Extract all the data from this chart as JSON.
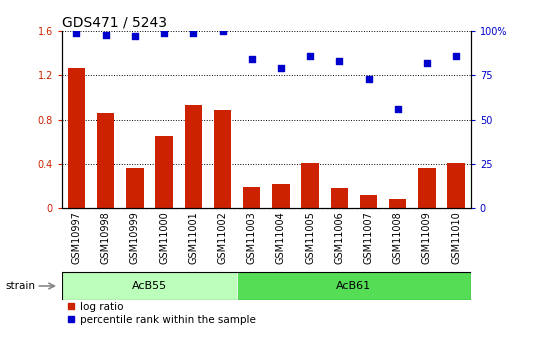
{
  "title": "GDS471 / 5243",
  "categories": [
    "GSM10997",
    "GSM10998",
    "GSM10999",
    "GSM11000",
    "GSM11001",
    "GSM11002",
    "GSM11003",
    "GSM11004",
    "GSM11005",
    "GSM11006",
    "GSM11007",
    "GSM11008",
    "GSM11009",
    "GSM11010"
  ],
  "log_ratio": [
    1.27,
    0.86,
    0.36,
    0.65,
    0.93,
    0.89,
    0.19,
    0.22,
    0.41,
    0.18,
    0.12,
    0.08,
    0.36,
    0.41
  ],
  "percentile_rank": [
    99,
    98,
    97,
    99,
    99,
    100,
    84,
    79,
    86,
    83,
    73,
    56,
    82,
    86
  ],
  "bar_color": "#cc2200",
  "dot_color": "#0000cc",
  "ylim_left": [
    0,
    1.6
  ],
  "ylim_right": [
    0,
    100
  ],
  "yticks_left": [
    0,
    0.4,
    0.8,
    1.2,
    1.6
  ],
  "yticks_right": [
    0,
    25,
    50,
    75,
    100
  ],
  "yticklabels_left": [
    "0",
    "0.4",
    "0.8",
    "1.2",
    "1.6"
  ],
  "yticklabels_right": [
    "0",
    "25",
    "50",
    "75",
    "100%"
  ],
  "groups": [
    {
      "label": "AcB55",
      "start": 0,
      "end": 5,
      "color": "#bbffbb"
    },
    {
      "label": "AcB61",
      "start": 6,
      "end": 13,
      "color": "#55dd55"
    }
  ],
  "strain_label": "strain",
  "legend_items": [
    {
      "color": "#cc2200",
      "label": "log ratio"
    },
    {
      "color": "#0000cc",
      "label": "percentile rank within the sample"
    }
  ],
  "xtick_bg_color": "#cccccc",
  "plot_bg_color": "#ffffff",
  "title_fontsize": 10,
  "tick_fontsize": 7,
  "label_fontsize": 7,
  "group_fontsize": 8
}
